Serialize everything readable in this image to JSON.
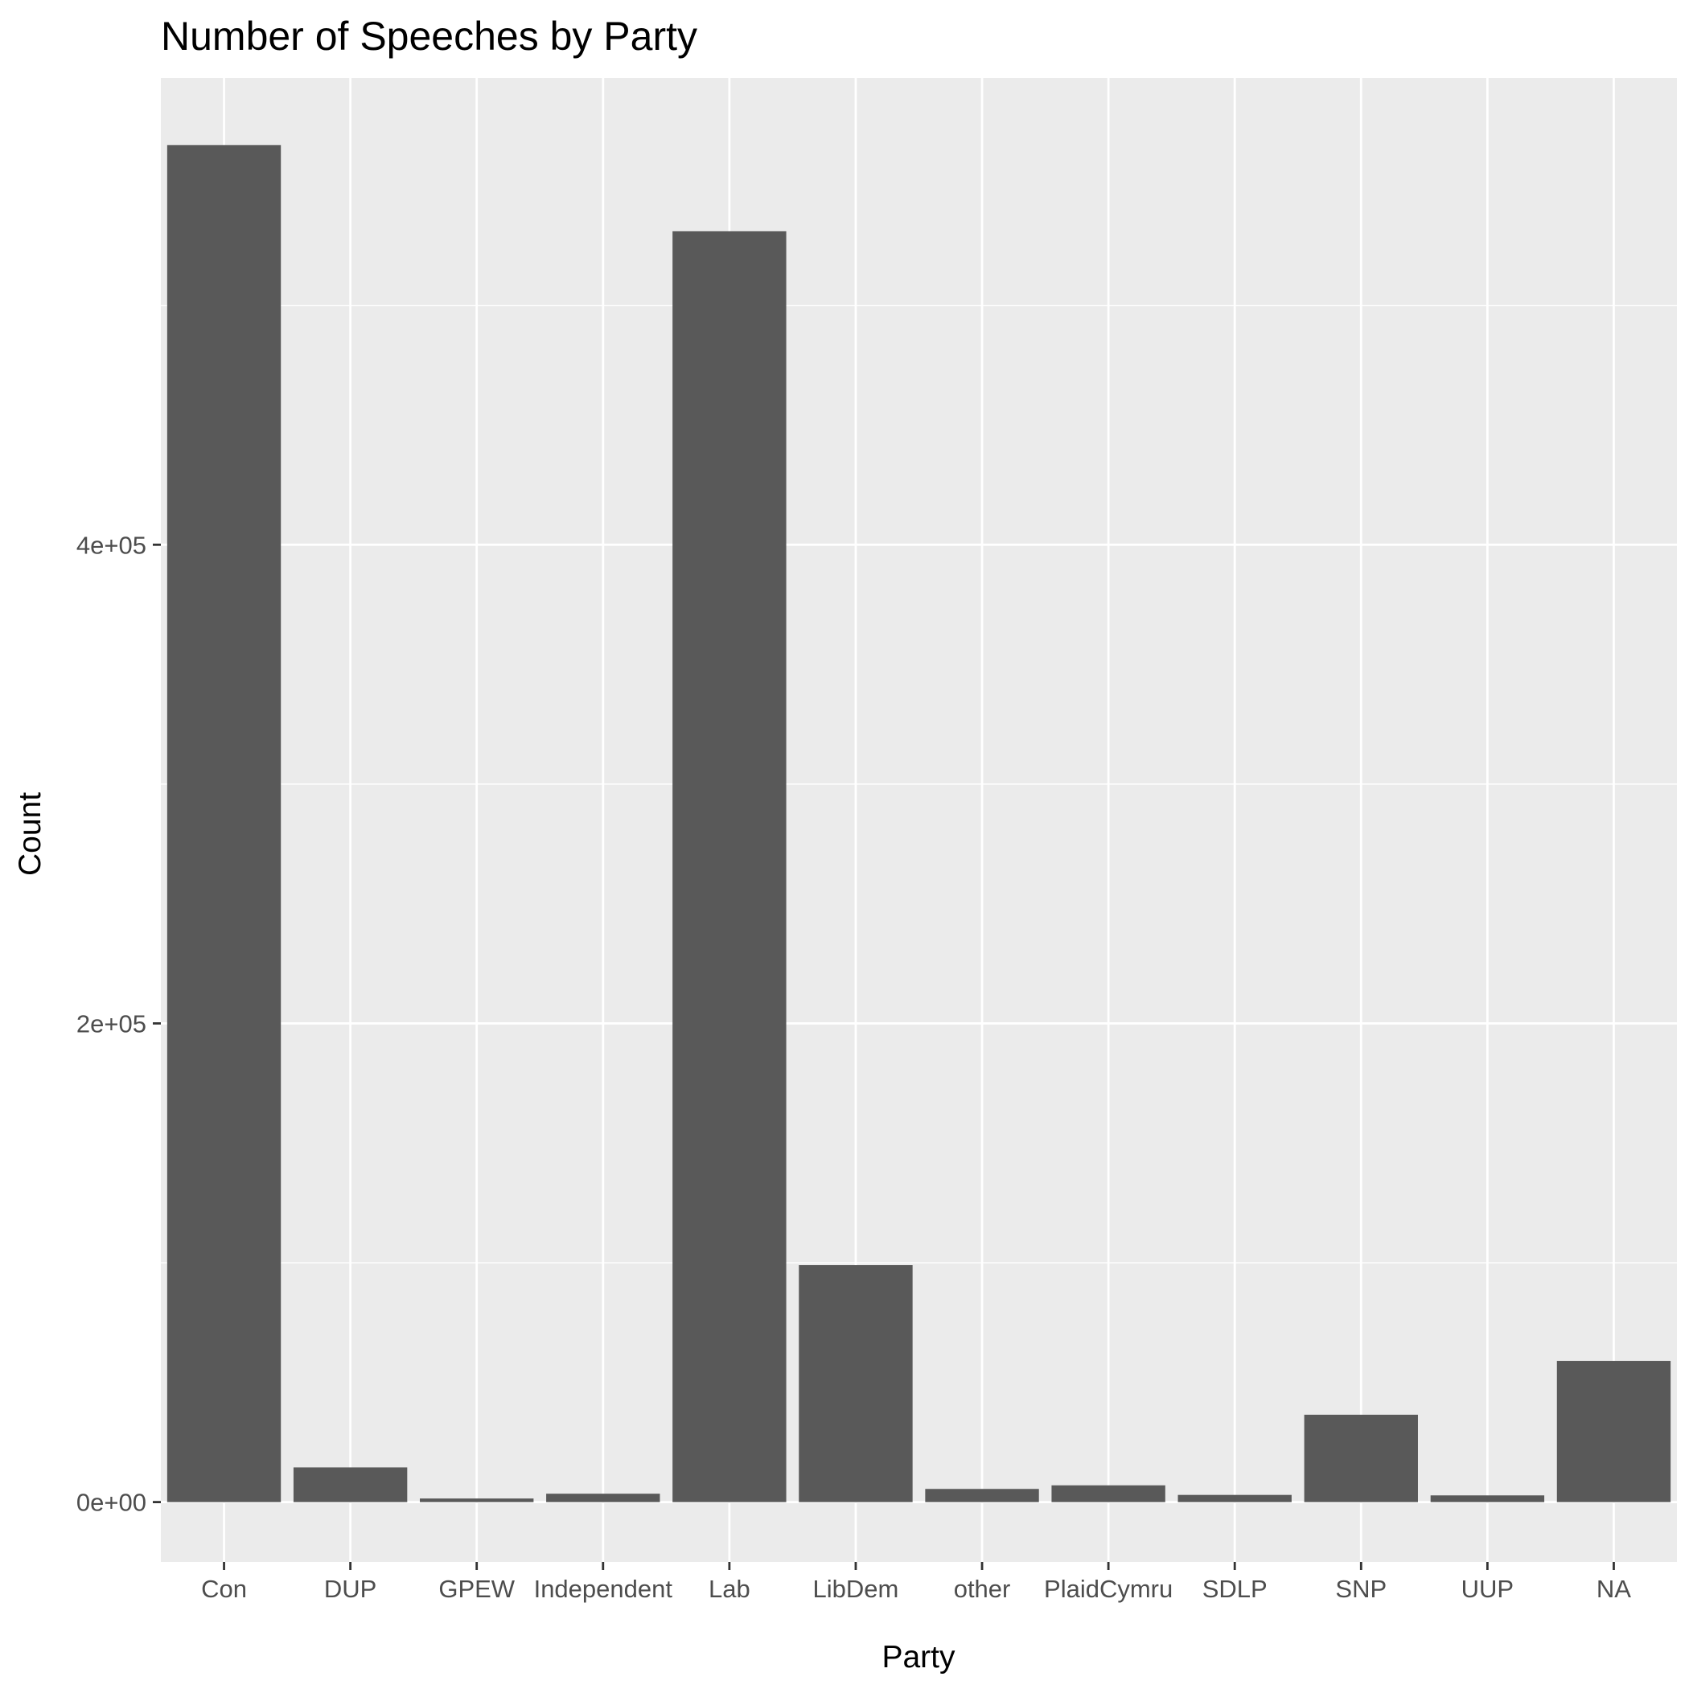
{
  "chart_data": {
    "type": "bar",
    "title": "Number of Speeches by Party",
    "xlabel": "Party",
    "ylabel": "Count",
    "categories": [
      "Con",
      "DUP",
      "GPEW",
      "Independent",
      "Lab",
      "LibDem",
      "other",
      "PlaidCymru",
      "SDLP",
      "SNP",
      "UUP",
      "NA"
    ],
    "values": [
      567000,
      14500,
      1500,
      3500,
      531000,
      99000,
      5500,
      7000,
      3000,
      36500,
      2800,
      59000
    ],
    "ylim": [
      -25000,
      595000
    ],
    "yticks": [
      0,
      200000,
      400000
    ],
    "ytick_labels": [
      "0e+00",
      "2e+05",
      "4e+05"
    ],
    "grid": true,
    "legend": "none",
    "colors": {
      "bar": "#595959",
      "panel": "#ebebeb",
      "grid": "#ffffff",
      "tick_text": "#4d4d4d",
      "tick_mark": "#333333"
    }
  }
}
